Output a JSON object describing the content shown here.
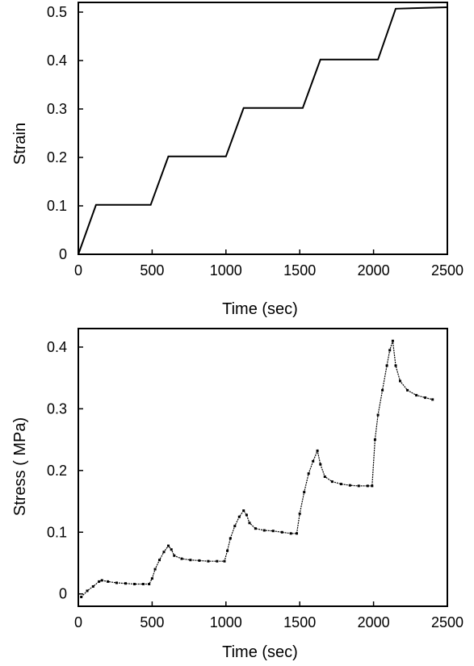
{
  "chart_data": [
    {
      "type": "line",
      "xlabel": "Time (sec)",
      "ylabel": "Strain",
      "xlim": [
        0,
        2500
      ],
      "ylim": [
        0,
        0.52
      ],
      "xticks": [
        0,
        500,
        1000,
        1500,
        2000,
        2500
      ],
      "xtick_labels": [
        "0",
        "500",
        "1000",
        "1500",
        "2000",
        "2500"
      ],
      "yticks": [
        0,
        0.1,
        0.2,
        0.3,
        0.4,
        0.5
      ],
      "ytick_labels": [
        "0",
        "0.1",
        "0.2",
        "0.3",
        "0.4",
        "0.5"
      ],
      "grid": false,
      "color": "#000000",
      "series": [
        {
          "x": [
            0,
            120,
            490,
            610,
            1000,
            1120,
            1520,
            1640,
            2030,
            2150,
            2500
          ],
          "y": [
            0,
            0.102,
            0.102,
            0.202,
            0.202,
            0.302,
            0.302,
            0.402,
            0.402,
            0.507,
            0.51
          ]
        }
      ]
    },
    {
      "type": "scatter",
      "xlabel": "Time (sec)",
      "ylabel": "Stress ( MPa)",
      "xlim": [
        0,
        2500
      ],
      "ylim": [
        -0.02,
        0.43
      ],
      "xticks": [
        0,
        500,
        1000,
        1500,
        2000,
        2500
      ],
      "xtick_labels": [
        "0",
        "500",
        "1000",
        "1500",
        "2000",
        "2500"
      ],
      "yticks": [
        0,
        0.1,
        0.2,
        0.3,
        0.4
      ],
      "ytick_labels": [
        "0",
        "0.1",
        "0.2",
        "0.3",
        "0.4"
      ],
      "grid": false,
      "color": "#000000",
      "series": [
        {
          "x": [
            20,
            60,
            100,
            140,
            160,
            200,
            260,
            320,
            380,
            440,
            480,
            500,
            520,
            550,
            580,
            610,
            630,
            650,
            700,
            760,
            820,
            880,
            940,
            990,
            1010,
            1030,
            1060,
            1090,
            1120,
            1140,
            1160,
            1200,
            1260,
            1320,
            1380,
            1440,
            1480,
            1500,
            1530,
            1560,
            1590,
            1620,
            1640,
            1670,
            1720,
            1780,
            1840,
            1900,
            1960,
            1990,
            2010,
            2030,
            2060,
            2090,
            2110,
            2130,
            2150,
            2180,
            2230,
            2290,
            2350,
            2400
          ],
          "y": [
            -0.005,
            0.005,
            0.012,
            0.02,
            0.022,
            0.02,
            0.018,
            0.017,
            0.016,
            0.016,
            0.016,
            0.025,
            0.04,
            0.055,
            0.068,
            0.078,
            0.072,
            0.062,
            0.057,
            0.055,
            0.054,
            0.053,
            0.053,
            0.053,
            0.07,
            0.09,
            0.11,
            0.125,
            0.135,
            0.128,
            0.115,
            0.106,
            0.103,
            0.102,
            0.1,
            0.098,
            0.098,
            0.13,
            0.165,
            0.195,
            0.215,
            0.232,
            0.21,
            0.19,
            0.182,
            0.178,
            0.176,
            0.175,
            0.175,
            0.175,
            0.25,
            0.29,
            0.33,
            0.37,
            0.395,
            0.41,
            0.37,
            0.345,
            0.33,
            0.322,
            0.318,
            0.315
          ]
        }
      ]
    }
  ]
}
